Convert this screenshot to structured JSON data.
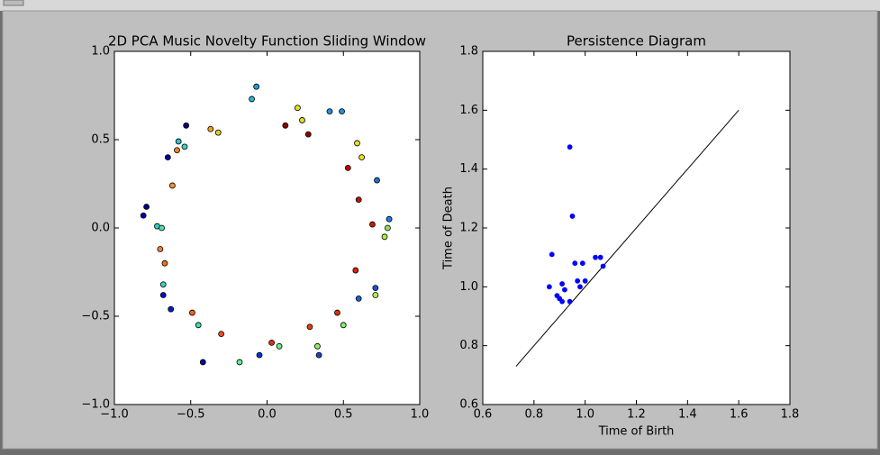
{
  "chart_data": [
    {
      "type": "scatter",
      "title": "2D PCA Music Novelty Function Sliding Window",
      "x": [
        -0.07,
        -0.1,
        0.2,
        0.41,
        0.49,
        0.23,
        0.12,
        0.27,
        -0.53,
        -0.37,
        -0.32,
        -0.58,
        -0.54,
        -0.59,
        -0.65,
        0.59,
        0.62,
        0.53,
        0.72,
        0.6,
        0.8,
        0.79,
        0.77,
        0.69,
        0.58,
        0.71,
        0.71,
        0.6,
        0.46,
        0.5,
        0.28,
        0.33,
        0.34,
        -0.62,
        -0.79,
        -0.81,
        -0.72,
        -0.69,
        -0.7,
        -0.67,
        -0.68,
        -0.68,
        -0.63,
        -0.49,
        -0.45,
        -0.3,
        -0.42,
        -0.18,
        -0.05,
        0.03,
        0.08
      ],
      "y": [
        0.8,
        0.73,
        0.68,
        0.66,
        0.66,
        0.61,
        0.58,
        0.53,
        0.58,
        0.56,
        0.54,
        0.49,
        0.46,
        0.44,
        0.4,
        0.48,
        0.4,
        0.34,
        0.27,
        0.16,
        0.05,
        0.0,
        -0.05,
        0.02,
        -0.24,
        -0.34,
        -0.38,
        -0.4,
        -0.48,
        -0.55,
        -0.56,
        -0.67,
        -0.72,
        0.24,
        0.12,
        0.07,
        0.01,
        0.0,
        -0.12,
        -0.2,
        -0.32,
        -0.38,
        -0.46,
        -0.48,
        -0.55,
        -0.6,
        -0.76,
        -0.76,
        -0.72,
        -0.65,
        -0.67
      ],
      "colors": [
        "#1ea0d6",
        "#20b8d8",
        "#e8e020",
        "#2090d8",
        "#2090d8",
        "#d8e020",
        "#8b0000",
        "#900000",
        "#000080",
        "#f0a020",
        "#e0d030",
        "#30c0d0",
        "#40d0c0",
        "#f08020",
        "#000090",
        "#e8e020",
        "#e8e020",
        "#c00000",
        "#2070d0",
        "#c01010",
        "#2080e0",
        "#90e050",
        "#b0f040",
        "#c02000",
        "#e02000",
        "#2050d0",
        "#b0f050",
        "#2060d0",
        "#e03000",
        "#80f070",
        "#e04000",
        "#90f060",
        "#2040c0",
        "#f09030",
        "#000080",
        "#0000a0",
        "#30d0c0",
        "#50e0a0",
        "#f08030",
        "#f07020",
        "#40d0c0",
        "#0010c0",
        "#0020c0",
        "#f06020",
        "#40e0b0",
        "#f05020",
        "#0010a0",
        "#60f090",
        "#0030d0",
        "#e03010",
        "#70f080"
      ],
      "xlim": [
        -1,
        1
      ],
      "ylim": [
        -1,
        1
      ],
      "xticks": [
        {
          "value": -1,
          "label": "−1.0"
        },
        {
          "value": -0.5,
          "label": "−0.5"
        },
        {
          "value": 0,
          "label": "0.0"
        },
        0.5,
        {
          "value": 1,
          "label": "1.0"
        }
      ],
      "yticks": [
        {
          "value": -1,
          "label": "−1.0"
        },
        {
          "value": -0.5,
          "label": "−0.5"
        },
        {
          "value": 0,
          "label": "0.0"
        },
        0.5,
        {
          "value": 1,
          "label": "1.0"
        }
      ]
    },
    {
      "type": "scatter",
      "title": "Persistence Diagram",
      "x_label": "Time of Birth",
      "y_label": "Time of Death",
      "x": [
        0.94,
        0.95,
        0.87,
        0.96,
        0.99,
        1.04,
        1.06,
        1.07,
        0.86,
        0.91,
        0.97,
        1.0,
        0.98,
        0.92,
        0.89,
        0.9,
        0.91,
        0.94
      ],
      "y": [
        1.475,
        1.24,
        1.11,
        1.08,
        1.08,
        1.1,
        1.1,
        1.07,
        1.0,
        1.01,
        1.02,
        1.02,
        1.0,
        0.99,
        0.97,
        0.96,
        0.95,
        0.95
      ],
      "color": "#0000ff",
      "reference_line": {
        "x": [
          0.73,
          1.6
        ],
        "y": [
          0.73,
          1.6
        ],
        "color": "#000000"
      },
      "xlim": [
        0.6,
        1.8
      ],
      "ylim": [
        0.6,
        1.8
      ],
      "xticks": [
        0.6,
        0.8,
        {
          "value": 1,
          "label": "1.0"
        },
        1.2,
        1.4,
        1.6,
        1.8
      ],
      "yticks": [
        0.6,
        0.8,
        {
          "value": 1,
          "label": "1.0"
        },
        1.2,
        1.4,
        1.6,
        1.8
      ]
    }
  ]
}
